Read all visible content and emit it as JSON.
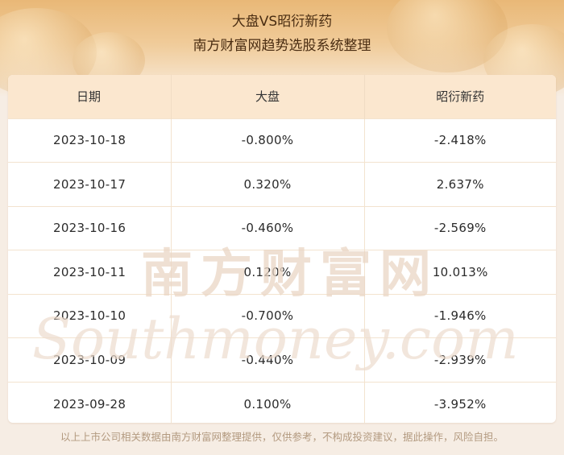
{
  "title": {
    "line1": "大盘VS昭衍新药",
    "line2": "南方财富网趋势选股系统整理"
  },
  "table": {
    "headers": [
      "日期",
      "大盘",
      "昭衍新药"
    ],
    "rows": [
      [
        "2023-10-18",
        "-0.800%",
        "-2.418%"
      ],
      [
        "2023-10-17",
        "0.320%",
        "2.637%"
      ],
      [
        "2023-10-16",
        "-0.460%",
        "-2.569%"
      ],
      [
        "2023-10-11",
        "0.120%",
        "10.013%"
      ],
      [
        "2023-10-10",
        "-0.700%",
        "-1.946%"
      ],
      [
        "2023-10-09",
        "-0.440%",
        "-2.939%"
      ],
      [
        "2023-09-28",
        "0.100%",
        "-3.952%"
      ]
    ]
  },
  "watermark": {
    "cn": "南方财富网",
    "en": "Southmoney.com"
  },
  "footer": "以上上市公司相关数据由南方财富网整理提供，仅供参考，不构成投资建议，据此操作，风险自担。",
  "colors": {
    "header_row": "#fbe7cf",
    "title_text": "#4a2d12",
    "watermark": "#e9d6c4"
  }
}
